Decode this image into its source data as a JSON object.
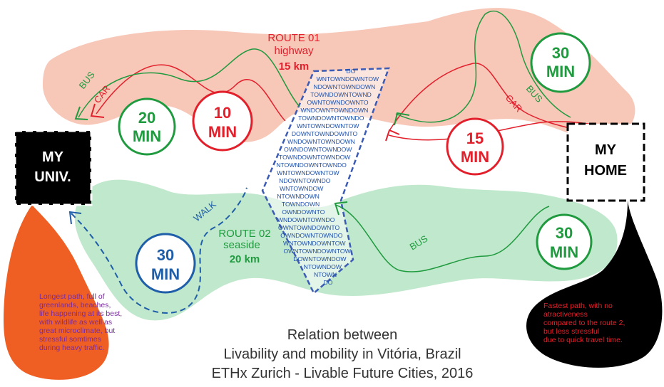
{
  "route01": {
    "title": "ROUTE 01",
    "subtitle": "highway",
    "distance": "15 km"
  },
  "route02": {
    "title": "ROUTE 02",
    "subtitle": "seaside",
    "distance": "20 km"
  },
  "labels": {
    "bus_top_left": "BUS",
    "car_top_left": "CAR",
    "bus_top_right": "BUS",
    "car_top_right": "CAR",
    "walk": "WALK",
    "bus_bottom": "BUS"
  },
  "times": {
    "bus_left": [
      "20",
      "MIN"
    ],
    "car_left": [
      "10",
      "MIN"
    ],
    "car_right": [
      "15",
      "MIN"
    ],
    "bus_right": [
      "30",
      "MIN"
    ],
    "walk": [
      "30",
      "MIN"
    ],
    "bus_bottom": [
      "30",
      "MIN"
    ]
  },
  "places": {
    "univ": [
      "MY",
      "UNIV."
    ],
    "home": [
      "MY",
      "HOME"
    ]
  },
  "downtown_lines": [
    "DO",
    "WNTOWNDOWNTOW",
    "NDOWNTOWNDOWN",
    "TOWNDOWNTOWND",
    "OWNTOWNDOWNTO",
    "WNDOWNTOWNDOWN",
    "TOWNDOWNTOWNDO",
    "WNTOWNDOWNTOW",
    "DOWNTOWNDOWNTO",
    "WNDOWNTOWNDOWN",
    "OWNDOWNTOWNDOW",
    "TOWNDOWNTOWNDOW",
    "NTOWNDOWNTOWNDO",
    "WNTOWNDOWNTOW",
    "NDOWNTOWNDO",
    "WNTOWNDOW",
    "NTOWNDOWN",
    "TOWNDOWN",
    "OWNDOWNTO",
    "WNDOWNTOWNDO",
    "OWNTOWNDOWNTO",
    "OWNDOWNTOWNDO",
    "WNTOWNDOWNTOW",
    "OWNTOWNDOWNTOW",
    "DOWNTOWNDOW",
    "NTOWNDOW",
    "NTOWN",
    "DO"
  ],
  "notes": {
    "left": [
      "Longest path, full of",
      "greenlands, beaches,",
      "life happening at its best,",
      "with wildlife as well as",
      "great microclimate, but",
      "stressful somtimes",
      "during heavy traffic."
    ],
    "right": [
      "Fastest path, with no",
      "atractiveness",
      "compared to the route 2,",
      "but less stressful",
      "due to quick travel time."
    ]
  },
  "caption": [
    "Relation between",
    "Livability and mobility in Vitória, Brazil",
    "ETHx Zurich - Livable Future Cities, 2016"
  ],
  "colors": {
    "red": "#e2202c",
    "green": "#1f9a3e",
    "blue": "#1f5ea8",
    "salmon": "#f6c1b0",
    "mint": "#b9e6c6",
    "orange": "#ef5f23"
  }
}
